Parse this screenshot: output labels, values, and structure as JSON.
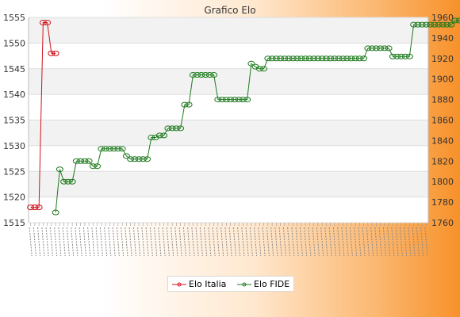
{
  "chart_data": {
    "type": "line",
    "title": "Grafico Elo",
    "xlabel": "",
    "ylabel": "",
    "x_tick_labels_legible": false,
    "grid": true,
    "legend_position": "bottom-center",
    "y_left": {
      "min": 1515,
      "max": 1555,
      "ticks": [
        1515,
        1520,
        1525,
        1530,
        1535,
        1540,
        1545,
        1550,
        1555
      ],
      "format": "####"
    },
    "y_right": {
      "min": 1760,
      "max": 1960,
      "ticks": [
        1760,
        1780,
        1800,
        1820,
        1840,
        1860,
        1880,
        1900,
        1920,
        1940,
        1960
      ],
      "format": "####"
    },
    "point_count": 96,
    "series": [
      {
        "name": "Elo Italia",
        "axis": "left",
        "color": "#d0121b",
        "points": [
          [
            0,
            1518
          ],
          [
            1,
            1518
          ],
          [
            2,
            1518
          ],
          [
            3,
            1554
          ],
          [
            4,
            1554
          ],
          [
            5,
            1548
          ],
          [
            6,
            1548
          ]
        ]
      },
      {
        "name": "Elo FIDE",
        "axis": "right",
        "color": "#1e7a1e",
        "points": [
          [
            6,
            1770
          ],
          [
            7,
            1812
          ],
          [
            8,
            1800
          ],
          [
            9,
            1800
          ],
          [
            10,
            1800
          ],
          [
            11,
            1820
          ],
          [
            12,
            1820
          ],
          [
            13,
            1820
          ],
          [
            14,
            1820
          ],
          [
            15,
            1815
          ],
          [
            16,
            1815
          ],
          [
            17,
            1832
          ],
          [
            18,
            1832
          ],
          [
            19,
            1832
          ],
          [
            20,
            1832
          ],
          [
            21,
            1832
          ],
          [
            22,
            1832
          ],
          [
            23,
            1825
          ],
          [
            24,
            1822
          ],
          [
            25,
            1822
          ],
          [
            26,
            1822
          ],
          [
            27,
            1822
          ],
          [
            28,
            1822
          ],
          [
            29,
            1843
          ],
          [
            30,
            1843
          ],
          [
            31,
            1845
          ],
          [
            32,
            1845
          ],
          [
            33,
            1852
          ],
          [
            34,
            1852
          ],
          [
            35,
            1852
          ],
          [
            36,
            1852
          ],
          [
            37,
            1875
          ],
          [
            38,
            1875
          ],
          [
            39,
            1904
          ],
          [
            40,
            1904
          ],
          [
            41,
            1904
          ],
          [
            42,
            1904
          ],
          [
            43,
            1904
          ],
          [
            44,
            1904
          ],
          [
            45,
            1880
          ],
          [
            46,
            1880
          ],
          [
            47,
            1880
          ],
          [
            48,
            1880
          ],
          [
            49,
            1880
          ],
          [
            50,
            1880
          ],
          [
            51,
            1880
          ],
          [
            52,
            1880
          ],
          [
            53,
            1915
          ],
          [
            54,
            1912
          ],
          [
            55,
            1910
          ],
          [
            56,
            1910
          ],
          [
            57,
            1920
          ],
          [
            58,
            1920
          ],
          [
            59,
            1920
          ],
          [
            60,
            1920
          ],
          [
            61,
            1920
          ],
          [
            62,
            1920
          ],
          [
            63,
            1920
          ],
          [
            64,
            1920
          ],
          [
            65,
            1920
          ],
          [
            66,
            1920
          ],
          [
            67,
            1920
          ],
          [
            68,
            1920
          ],
          [
            69,
            1920
          ],
          [
            70,
            1920
          ],
          [
            71,
            1920
          ],
          [
            72,
            1920
          ],
          [
            73,
            1920
          ],
          [
            74,
            1920
          ],
          [
            75,
            1920
          ],
          [
            76,
            1920
          ],
          [
            77,
            1920
          ],
          [
            78,
            1920
          ],
          [
            79,
            1920
          ],
          [
            80,
            1920
          ],
          [
            81,
            1930
          ],
          [
            82,
            1930
          ],
          [
            83,
            1930
          ],
          [
            84,
            1930
          ],
          [
            85,
            1930
          ],
          [
            86,
            1930
          ],
          [
            87,
            1922
          ],
          [
            88,
            1922
          ],
          [
            89,
            1922
          ],
          [
            90,
            1922
          ],
          [
            91,
            1922
          ],
          [
            92,
            1953
          ],
          [
            93,
            1953
          ],
          [
            94,
            1953
          ],
          [
            95,
            1953
          ],
          [
            96,
            1953
          ],
          [
            97,
            1953
          ],
          [
            98,
            1953
          ],
          [
            99,
            1953
          ],
          [
            100,
            1953
          ],
          [
            101,
            1953
          ],
          [
            102,
            1957
          ],
          [
            103,
            1957
          ],
          [
            104,
            1957
          ],
          [
            105,
            1957
          ],
          [
            106,
            1957
          ],
          [
            107,
            1957
          ],
          [
            108,
            1957
          ],
          [
            109,
            1957
          ],
          [
            110,
            1957
          ],
          [
            111,
            1957
          ]
        ]
      }
    ]
  },
  "legend": {
    "items": [
      {
        "label": "Elo Italia",
        "color": "#d0121b"
      },
      {
        "label": "Elo FIDE",
        "color": "#1e7a1e"
      }
    ]
  }
}
